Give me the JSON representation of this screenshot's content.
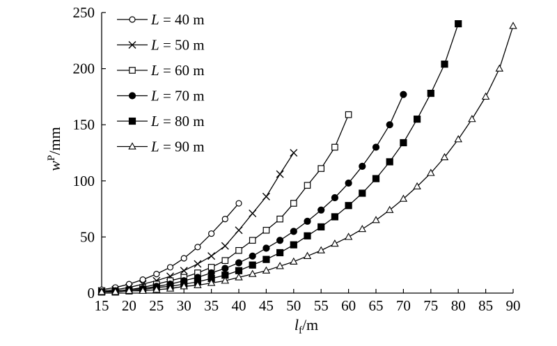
{
  "chart_data": {
    "type": "line",
    "xlabel": "lf/m",
    "ylabel": "wP/mm",
    "xlim": [
      15,
      90
    ],
    "ylim": [
      0,
      250
    ],
    "xticks": [
      15,
      20,
      25,
      30,
      35,
      40,
      45,
      50,
      55,
      60,
      65,
      70,
      75,
      80,
      85,
      90
    ],
    "yticks": [
      0,
      50,
      100,
      150,
      200,
      250
    ],
    "grid": false,
    "legend_position": "top-left",
    "series": [
      {
        "name": "L = 40 m",
        "marker": "open-circle",
        "x": [
          15,
          17.5,
          20,
          22.5,
          25,
          27.5,
          30,
          32.5,
          35,
          37.5,
          40
        ],
        "y": [
          3,
          5,
          8,
          12,
          17,
          23,
          31,
          41,
          53,
          66,
          80
        ]
      },
      {
        "name": "L = 50 m",
        "marker": "cross",
        "x": [
          15,
          17.5,
          20,
          22.5,
          25,
          27.5,
          30,
          32.5,
          35,
          37.5,
          40,
          42.5,
          45,
          47.5,
          50
        ],
        "y": [
          2,
          3,
          5,
          8,
          11,
          15,
          20,
          26,
          33,
          42,
          56,
          71,
          86,
          106,
          125
        ]
      },
      {
        "name": "L = 60 m",
        "marker": "open-square",
        "x": [
          15,
          17.5,
          20,
          22.5,
          25,
          27.5,
          30,
          32.5,
          35,
          37.5,
          40,
          42.5,
          45,
          47.5,
          50,
          52.5,
          55,
          57.5,
          60
        ],
        "y": [
          1,
          2,
          3,
          5,
          8,
          11,
          14,
          18,
          23,
          29,
          38,
          47,
          56,
          66,
          80,
          96,
          111,
          130,
          159
        ]
      },
      {
        "name": "L = 70 m",
        "marker": "filled-circle",
        "x": [
          15,
          17.5,
          20,
          22.5,
          25,
          27.5,
          30,
          32.5,
          35,
          37.5,
          40,
          42.5,
          45,
          47.5,
          50,
          52.5,
          55,
          57.5,
          60,
          62.5,
          65,
          67.5,
          70
        ],
        "y": [
          1,
          2,
          3,
          4,
          6,
          8,
          11,
          14,
          18,
          22,
          27,
          33,
          40,
          47,
          55,
          64,
          74,
          85,
          98,
          113,
          130,
          150,
          177
        ]
      },
      {
        "name": "L = 80 m",
        "marker": "filled-square",
        "x": [
          15,
          17.5,
          20,
          22.5,
          25,
          27.5,
          30,
          32.5,
          35,
          37.5,
          40,
          42.5,
          45,
          47.5,
          50,
          52.5,
          55,
          57.5,
          60,
          62.5,
          65,
          67.5,
          70,
          72.5,
          75,
          77.5,
          80
        ],
        "y": [
          1,
          1,
          2,
          3,
          5,
          6,
          8,
          10,
          13,
          16,
          20,
          25,
          30,
          36,
          43,
          51,
          59,
          68,
          78,
          89,
          102,
          117,
          134,
          155,
          178,
          204,
          240
        ]
      },
      {
        "name": "L = 90 m",
        "marker": "open-triangle",
        "x": [
          15,
          17.5,
          20,
          22.5,
          25,
          27.5,
          30,
          32.5,
          35,
          37.5,
          40,
          42.5,
          45,
          47.5,
          50,
          52.5,
          55,
          57.5,
          60,
          62.5,
          65,
          67.5,
          70,
          72.5,
          75,
          77.5,
          80,
          82.5,
          85,
          87.5,
          90
        ],
        "y": [
          1,
          1,
          2,
          2,
          3,
          4,
          6,
          7,
          9,
          11,
          14,
          17,
          20,
          24,
          28,
          33,
          38,
          44,
          50,
          57,
          65,
          74,
          84,
          95,
          107,
          121,
          137,
          155,
          175,
          200,
          238
        ]
      }
    ]
  }
}
